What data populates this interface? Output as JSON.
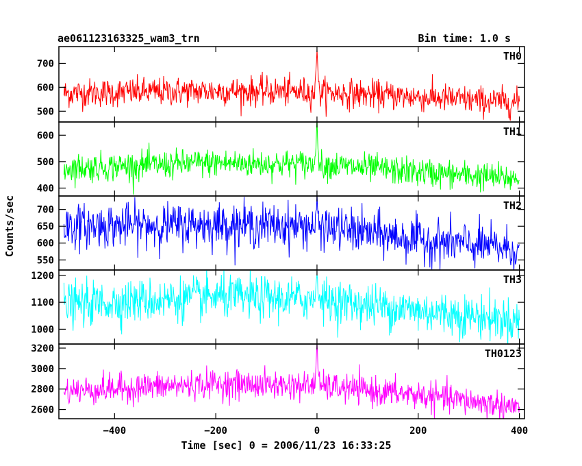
{
  "header": {
    "title": "ae061123163325_wam3_trn",
    "bin_time": "Bin time: 1.0 s"
  },
  "chart_data": {
    "type": "line",
    "xlabel": "Time [sec] 0 = 2006/11/23 16:33:25",
    "ylabel": "Counts/sec",
    "xlim": [
      -510,
      410
    ],
    "x_ticks": [
      -400,
      -200,
      0,
      200,
      400
    ],
    "x_tick_labels": [
      "−400",
      "−200",
      "0",
      "200",
      "400"
    ],
    "x_range": [
      -500,
      400
    ],
    "bin_seconds": 1.0,
    "panels": [
      {
        "name": "TH0",
        "color": "#ff0000",
        "ylim": [
          455,
          770
        ],
        "yticks": [
          500,
          600,
          700
        ],
        "trend": [
          [
            -500,
            575
          ],
          [
            -200,
            585
          ],
          [
            0,
            580
          ],
          [
            200,
            560
          ],
          [
            400,
            535
          ]
        ],
        "noise_sigma": 30,
        "peak": {
          "x": 0,
          "y": 765
        }
      },
      {
        "name": "TH1",
        "color": "#00ff00",
        "ylim": [
          370,
          650
        ],
        "yticks": [
          400,
          500,
          600
        ],
        "trend": [
          [
            -500,
            475
          ],
          [
            -200,
            495
          ],
          [
            0,
            490
          ],
          [
            200,
            460
          ],
          [
            400,
            435
          ]
        ],
        "noise_sigma": 27,
        "peak": {
          "x": 0,
          "y": 645
        }
      },
      {
        "name": "TH2",
        "color": "#0000ff",
        "ylim": [
          520,
          740
        ],
        "yticks": [
          550,
          600,
          650,
          700
        ],
        "trend": [
          [
            -500,
            650
          ],
          [
            -200,
            655
          ],
          [
            0,
            650
          ],
          [
            200,
            610
          ],
          [
            400,
            580
          ]
        ],
        "noise_sigma": 32,
        "peak": {
          "x": 0,
          "y": 730
        }
      },
      {
        "name": "TH3",
        "color": "#00ffff",
        "ylim": [
          945,
          1220
        ],
        "yticks": [
          1000,
          1100,
          1200
        ],
        "trend": [
          [
            -500,
            1090
          ],
          [
            -200,
            1120
          ],
          [
            0,
            1110
          ],
          [
            200,
            1070
          ],
          [
            400,
            1030
          ]
        ],
        "noise_sigma": 40,
        "peak": {
          "x": 0,
          "y": 1215
        }
      },
      {
        "name": "TH0123",
        "color": "#ff00ff",
        "ylim": [
          2510,
          3240
        ],
        "yticks": [
          2600,
          2800,
          3000,
          3200
        ],
        "trend": [
          [
            -500,
            2780
          ],
          [
            -200,
            2850
          ],
          [
            0,
            2830
          ],
          [
            200,
            2740
          ],
          [
            400,
            2620
          ]
        ],
        "noise_sigma": 70,
        "peak": {
          "x": 0,
          "y": 3230
        }
      }
    ]
  }
}
